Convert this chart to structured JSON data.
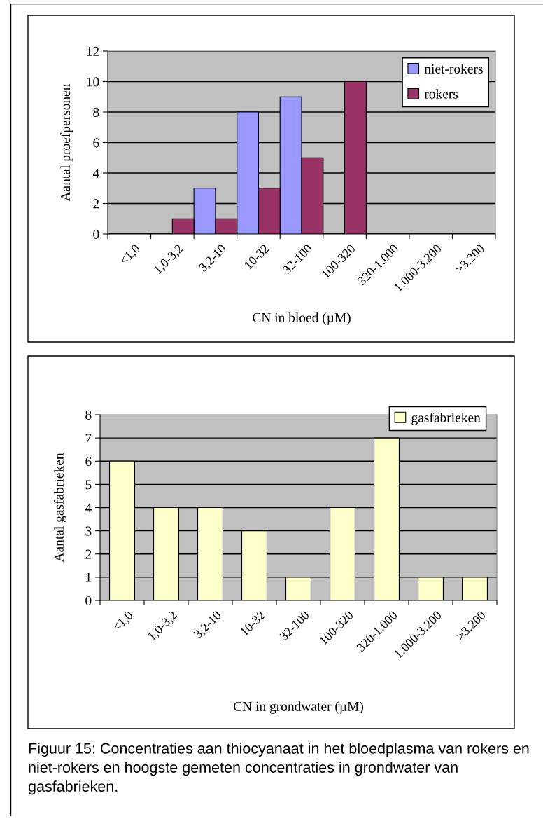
{
  "chart_data": [
    {
      "type": "bar",
      "categories": [
        "<1,0",
        "1,0-3,2",
        "3,2-10",
        "10-32",
        "32-100",
        "100-320",
        "320-1.000",
        "1.000-3.200",
        ">3.200"
      ],
      "series": [
        {
          "name": "niet-rokers",
          "color": "#9999ff",
          "values": [
            0,
            0,
            3,
            8,
            9,
            0,
            0,
            0,
            0
          ]
        },
        {
          "name": "rokers",
          "color": "#993366",
          "values": [
            0,
            1,
            1,
            3,
            5,
            10,
            0,
            0,
            0
          ]
        }
      ],
      "xlabel": "CN in bloed (µM)",
      "ylabel": "Aantal proefpersonen",
      "ylim": [
        0,
        12
      ],
      "yticks": [
        0,
        2,
        4,
        6,
        8,
        10,
        12
      ],
      "grid": "y",
      "legend": "top right"
    },
    {
      "type": "bar",
      "categories": [
        "<1,0",
        "1,0-3,2",
        "3,2-10",
        "10-32",
        "32-100",
        "100-320",
        "320-1.000",
        "1.000-3.200",
        ">3.200"
      ],
      "series": [
        {
          "name": "gasfabrieken",
          "color": "#ffffcc",
          "values": [
            6,
            4,
            4,
            3,
            1,
            4,
            7,
            1,
            1
          ]
        }
      ],
      "xlabel": "CN in grondwater (µM)",
      "ylabel": "Aantal gasfabrieken",
      "ylim": [
        0,
        8
      ],
      "yticks": [
        0,
        1,
        2,
        3,
        4,
        5,
        6,
        7,
        8
      ],
      "grid": "y",
      "legend": "top right",
      "annotations": [
        "Figuur 15: Concentraties aan thiocyanaat in het bloedplasma van rokers en niet-rokers en hoogste gemeten concentraties in grondwater van gasfabrieken."
      ]
    }
  ]
}
